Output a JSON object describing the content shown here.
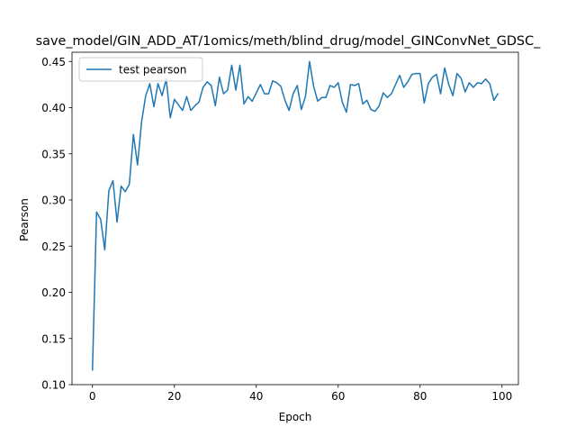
{
  "chart_data": {
    "type": "line",
    "title": "save_model/GIN_ADD_AT/1omics/meth/blind_drug/model_GINConvNet_GDSC_",
    "xlabel": "Epoch",
    "ylabel": "Pearson",
    "xlim": [
      -5,
      104
    ],
    "ylim": [
      0.1,
      0.46
    ],
    "x_ticks": [
      0,
      20,
      40,
      60,
      80,
      100
    ],
    "x_tick_labels": [
      "0",
      "20",
      "40",
      "60",
      "80",
      "100"
    ],
    "y_ticks": [
      0.1,
      0.15,
      0.2,
      0.25,
      0.3,
      0.35,
      0.4,
      0.45
    ],
    "y_tick_labels": [
      "0.10",
      "0.15",
      "0.20",
      "0.25",
      "0.30",
      "0.35",
      "0.40",
      "0.45"
    ],
    "grid": false,
    "legend_position": "upper-left",
    "series": [
      {
        "name": "test pearson",
        "color": "#1f77b4",
        "x": [
          0,
          1,
          2,
          3,
          4,
          5,
          6,
          7,
          8,
          9,
          10,
          11,
          12,
          13,
          14,
          15,
          16,
          17,
          18,
          19,
          20,
          21,
          22,
          23,
          24,
          25,
          26,
          27,
          28,
          29,
          30,
          31,
          32,
          33,
          34,
          35,
          36,
          37,
          38,
          39,
          40,
          41,
          42,
          43,
          44,
          45,
          46,
          47,
          48,
          49,
          50,
          51,
          52,
          53,
          54,
          55,
          56,
          57,
          58,
          59,
          60,
          61,
          62,
          63,
          64,
          65,
          66,
          67,
          68,
          69,
          70,
          71,
          72,
          73,
          74,
          75,
          76,
          77,
          78,
          79,
          80,
          81,
          82,
          83,
          84,
          85,
          86,
          87,
          88,
          89,
          90,
          91,
          92,
          93,
          94,
          95,
          96,
          97,
          98,
          99
        ],
        "values": [
          0.116,
          0.287,
          0.279,
          0.246,
          0.31,
          0.321,
          0.276,
          0.315,
          0.309,
          0.317,
          0.371,
          0.338,
          0.385,
          0.413,
          0.426,
          0.401,
          0.426,
          0.413,
          0.431,
          0.389,
          0.409,
          0.403,
          0.397,
          0.412,
          0.397,
          0.402,
          0.406,
          0.422,
          0.428,
          0.424,
          0.402,
          0.433,
          0.415,
          0.419,
          0.446,
          0.419,
          0.446,
          0.404,
          0.412,
          0.407,
          0.416,
          0.425,
          0.415,
          0.415,
          0.429,
          0.427,
          0.423,
          0.408,
          0.397,
          0.415,
          0.424,
          0.398,
          0.412,
          0.45,
          0.423,
          0.407,
          0.411,
          0.411,
          0.424,
          0.422,
          0.427,
          0.406,
          0.395,
          0.425,
          0.424,
          0.426,
          0.404,
          0.408,
          0.398,
          0.396,
          0.402,
          0.416,
          0.411,
          0.415,
          0.425,
          0.435,
          0.422,
          0.428,
          0.436,
          0.437,
          0.437,
          0.405,
          0.426,
          0.433,
          0.436,
          0.415,
          0.443,
          0.425,
          0.413,
          0.437,
          0.432,
          0.417,
          0.427,
          0.422,
          0.427,
          0.426,
          0.431,
          0.426,
          0.408,
          0.415
        ]
      }
    ]
  }
}
